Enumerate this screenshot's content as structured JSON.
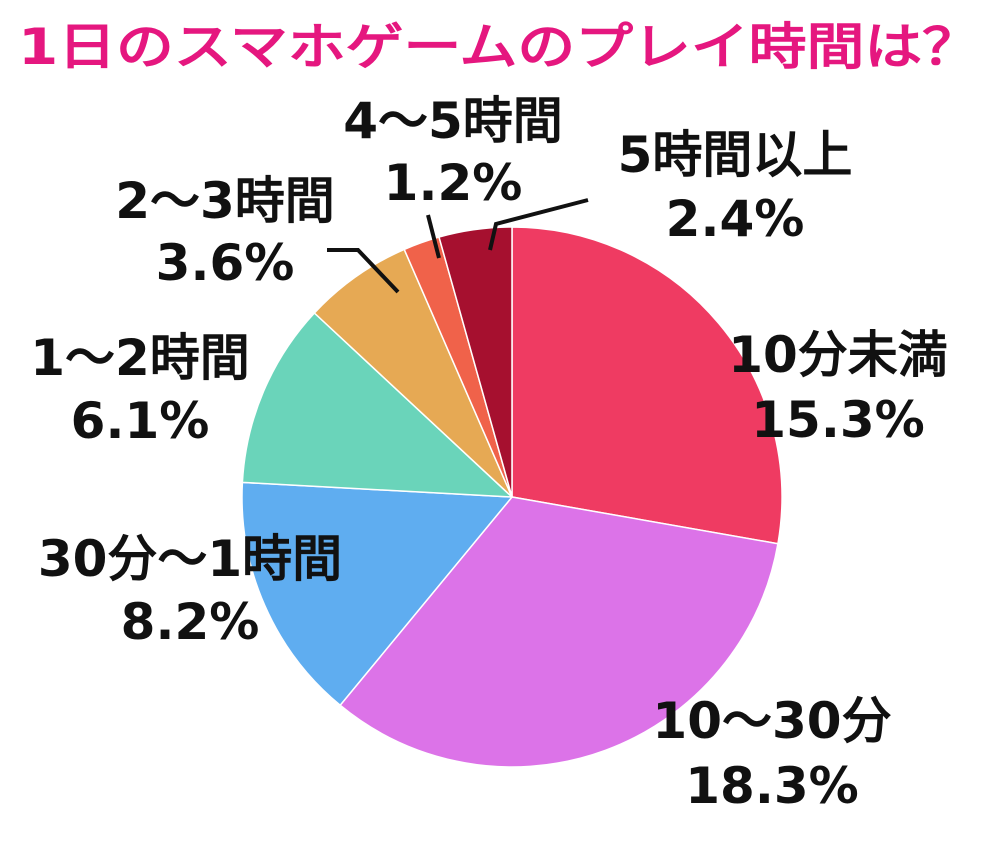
{
  "chart_data": {
    "type": "pie",
    "title": "1日のスマホゲームのプレイ時間は？",
    "slices": [
      {
        "label": "10分未満",
        "value": 15.3,
        "value_label": "15.3%",
        "color": "#ef3b62"
      },
      {
        "label": "10〜30分",
        "value": 18.3,
        "value_label": "18.3%",
        "color": "#dc73e8"
      },
      {
        "label": "30分〜1時間",
        "value": 8.2,
        "value_label": "8.2%",
        "color": "#5fadf0"
      },
      {
        "label": "1〜2時間",
        "value": 6.1,
        "value_label": "6.1%",
        "color": "#6ad4ba"
      },
      {
        "label": "2〜3時間",
        "value": 3.6,
        "value_label": "3.6%",
        "color": "#e6a954"
      },
      {
        "label": "4〜5時間",
        "value": 1.2,
        "value_label": "1.2%",
        "color": "#f0624a"
      },
      {
        "label": "5時間以上",
        "value": 2.4,
        "value_label": "2.4%",
        "color": "#a6102f"
      }
    ]
  }
}
